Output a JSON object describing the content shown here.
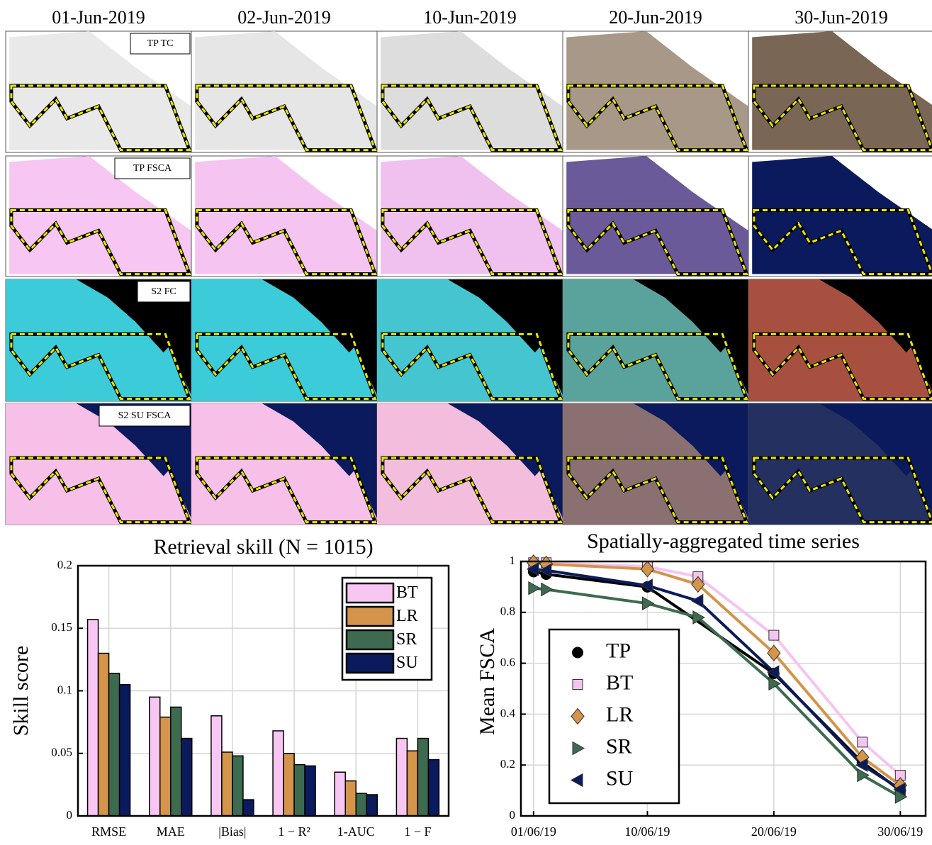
{
  "image_grid": {
    "columns": [
      "01-Jun-2019",
      "02-Jun-2019",
      "10-Jun-2019",
      "20-Jun-2019",
      "30-Jun-2019"
    ],
    "rows": [
      "TP TC",
      "TP FSCA",
      "S2 FC",
      "S2 SU FSCA"
    ]
  },
  "chart_data": [
    {
      "type": "bar",
      "title": "Retrieval skill (N = 1015)",
      "y_label": "Skill score",
      "categories": [
        "RMSE",
        "MAE",
        "|Bias|",
        "1 − R²",
        "1-AUC",
        "1 − F"
      ],
      "series": [
        {
          "name": "BT",
          "color": "#f8c6f3",
          "values": [
            0.157,
            0.095,
            0.08,
            0.068,
            0.035,
            0.062
          ]
        },
        {
          "name": "LR",
          "color": "#d4944a",
          "values": [
            0.13,
            0.079,
            0.051,
            0.05,
            0.028,
            0.052
          ]
        },
        {
          "name": "SR",
          "color": "#3d6b4f",
          "values": [
            0.114,
            0.087,
            0.048,
            0.041,
            0.018,
            0.062
          ]
        },
        {
          "name": "SU",
          "color": "#0a1a5c",
          "values": [
            0.105,
            0.062,
            0.013,
            0.04,
            0.017,
            0.045
          ]
        }
      ],
      "ylim": [
        0,
        0.2
      ],
      "yticks": [
        0,
        0.05,
        0.1,
        0.15,
        0.2
      ],
      "grid": true,
      "legend": "top-right"
    },
    {
      "type": "line",
      "title": "Spatially-aggregated time series",
      "y_label": "Mean FSCA",
      "xlim": [
        "31/05/19",
        "02/07/19"
      ],
      "xticks": [
        "01/06/19",
        "10/06/19",
        "20/06/19",
        "30/06/19"
      ],
      "ylim": [
        0,
        1
      ],
      "yticks": [
        0,
        0.2,
        0.4,
        0.6,
        0.8,
        1
      ],
      "grid": true,
      "legend": "bottom-left",
      "series": [
        {
          "name": "TP",
          "color": "#000000",
          "marker": "circle",
          "x": [
            "01/06/19",
            "02/06/19",
            "10/06/19",
            "20/06/19",
            "27/06/19",
            "30/06/19"
          ],
          "values": [
            0.96,
            0.95,
            0.9,
            0.56,
            0.21,
            0.1
          ]
        },
        {
          "name": "BT",
          "color": "#f5c4f0",
          "marker": "square",
          "x": [
            "01/06/19",
            "02/06/19",
            "10/06/19",
            "14/06/19",
            "20/06/19",
            "27/06/19",
            "30/06/19"
          ],
          "values": [
            0.995,
            0.995,
            0.98,
            0.94,
            0.71,
            0.29,
            0.16
          ]
        },
        {
          "name": "LR",
          "color": "#d4944a",
          "marker": "diamond",
          "x": [
            "01/06/19",
            "02/06/19",
            "10/06/19",
            "14/06/19",
            "20/06/19",
            "27/06/19",
            "30/06/19"
          ],
          "values": [
            0.995,
            0.99,
            0.97,
            0.91,
            0.64,
            0.23,
            0.12
          ]
        },
        {
          "name": "SR",
          "color": "#3d6b4f",
          "marker": "triangle-right",
          "x": [
            "01/06/19",
            "02/06/19",
            "10/06/19",
            "14/06/19",
            "20/06/19",
            "27/06/19",
            "30/06/19"
          ],
          "values": [
            0.895,
            0.89,
            0.835,
            0.78,
            0.52,
            0.16,
            0.075
          ]
        },
        {
          "name": "SU",
          "color": "#0a1a5c",
          "marker": "triangle-left",
          "x": [
            "01/06/19",
            "02/06/19",
            "10/06/19",
            "14/06/19",
            "20/06/19",
            "27/06/19",
            "30/06/19"
          ],
          "values": [
            0.97,
            0.965,
            0.905,
            0.845,
            0.565,
            0.2,
            0.105
          ]
        }
      ]
    }
  ]
}
